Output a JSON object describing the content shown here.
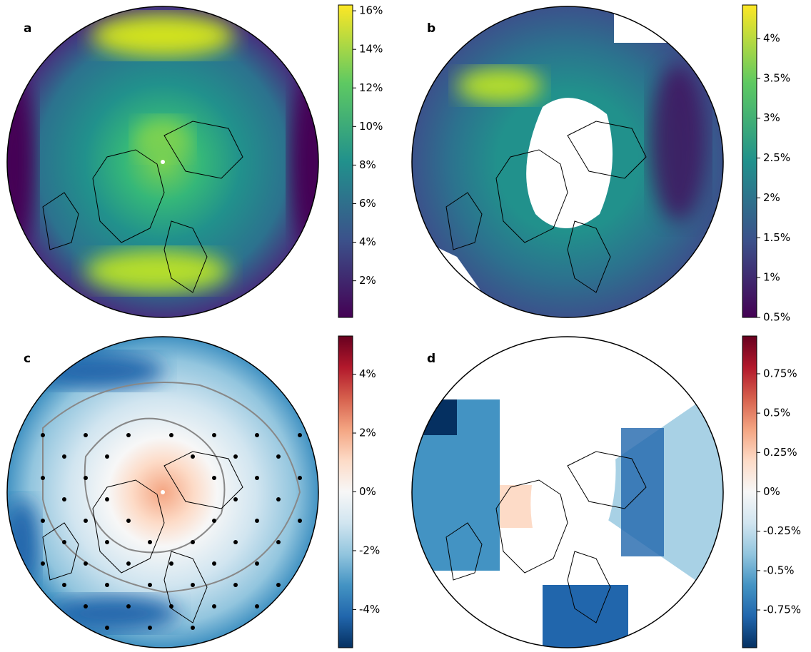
{
  "chart_data": [
    {
      "type": "map",
      "title": "a",
      "colormap": "viridis",
      "ylim": [
        0.1,
        16.3
      ],
      "yticks": [
        {
          "value": 2,
          "label": "2%"
        },
        {
          "value": 4,
          "label": "4%"
        },
        {
          "value": 6,
          "label": "6%"
        },
        {
          "value": 8,
          "label": "8%"
        },
        {
          "value": 10,
          "label": "10%"
        },
        {
          "value": 12,
          "label": "12%"
        },
        {
          "value": 14,
          "label": "14%"
        },
        {
          "value": 16,
          "label": "16%"
        }
      ]
    },
    {
      "type": "map",
      "title": "b",
      "colormap": "viridis",
      "ylim": [
        0.5,
        4.42
      ],
      "yticks": [
        {
          "value": 0.5,
          "label": "0.5%"
        },
        {
          "value": 1,
          "label": "1%"
        },
        {
          "value": 1.5,
          "label": "1.5%"
        },
        {
          "value": 2,
          "label": "2%"
        },
        {
          "value": 2.5,
          "label": "2.5%"
        },
        {
          "value": 3,
          "label": "3%"
        },
        {
          "value": 3.5,
          "label": "3.5%"
        },
        {
          "value": 4,
          "label": "4%"
        }
      ]
    },
    {
      "type": "map",
      "title": "c",
      "colormap": "RdBu_r",
      "ylim": [
        -5.3,
        5.3
      ],
      "yticks": [
        {
          "value": -4,
          "label": "-4%"
        },
        {
          "value": -2,
          "label": "-2%"
        },
        {
          "value": 0,
          "label": "0%"
        },
        {
          "value": 2,
          "label": "2%"
        },
        {
          "value": 4,
          "label": "4%"
        }
      ]
    },
    {
      "type": "map",
      "title": "d",
      "colormap": "RdBu_r",
      "ylim": [
        -0.99,
        0.99
      ],
      "yticks": [
        {
          "value": -0.75,
          "label": "-0.75%"
        },
        {
          "value": -0.5,
          "label": "-0.5%"
        },
        {
          "value": -0.25,
          "label": "-0.25%"
        },
        {
          "value": 0,
          "label": "0%"
        },
        {
          "value": 0.25,
          "label": "0.25%"
        },
        {
          "value": 0.5,
          "label": "0.5%"
        },
        {
          "value": 0.75,
          "label": "0.75%"
        }
      ]
    }
  ]
}
